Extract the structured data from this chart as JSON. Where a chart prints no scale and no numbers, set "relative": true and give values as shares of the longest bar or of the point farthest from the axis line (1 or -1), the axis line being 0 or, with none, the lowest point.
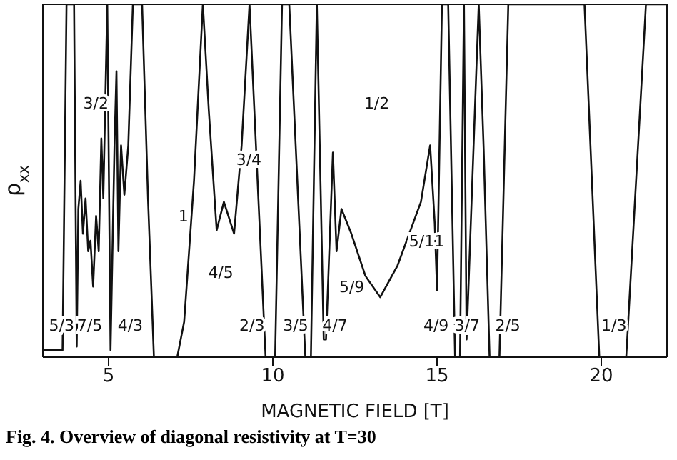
{
  "chart_data": {
    "type": "line",
    "relative": true,
    "xlabel": "MAGNETIC FIELD [T]",
    "ylabel": "ρ$_{xx}$",
    "xlim": [
      3,
      22
    ],
    "xticks": [
      5,
      10,
      15,
      20
    ],
    "marker": "none",
    "line_style": "solid",
    "series": [
      {
        "color": "#111111",
        "x": [
          3.04,
          3.6,
          3.72,
          3.95,
          4.03,
          4.08,
          4.15,
          4.22,
          4.3,
          4.38,
          4.45,
          4.53,
          4.62,
          4.7,
          4.78,
          4.84,
          4.96,
          5.06,
          5.18,
          5.24,
          5.3,
          5.38,
          5.48,
          5.6,
          5.74,
          6.02,
          6.2,
          6.38,
          7.09,
          7.3,
          7.6,
          7.87,
          8.05,
          8.29,
          8.51,
          8.82,
          9.05,
          9.29,
          9.78,
          10.07,
          10.28,
          10.5,
          10.99,
          11.16,
          11.34,
          11.55,
          11.62,
          11.83,
          11.94,
          12.09,
          12.39,
          12.82,
          13.27,
          13.8,
          14.51,
          14.79,
          14.93,
          15.0,
          15.15,
          15.34,
          15.55,
          15.7,
          15.82,
          15.9,
          16.27,
          16.42,
          16.6,
          16.9,
          17.17,
          19.49,
          19.94,
          20.76,
          21.36,
          22.0
        ],
        "values": [
          0.02,
          0.02,
          1,
          1,
          0.03,
          0.42,
          0.5,
          0.35,
          0.45,
          0.3,
          0.33,
          0.2,
          0.4,
          0.3,
          0.62,
          0.45,
          1,
          0.02,
          0.6,
          0.81,
          0.3,
          0.6,
          0.46,
          0.6,
          1,
          1,
          0.45,
          0,
          0,
          0.1,
          0.5,
          1,
          0.7,
          0.36,
          0.44,
          0.35,
          0.6,
          1,
          0,
          0,
          1,
          1,
          0,
          0,
          1,
          0.05,
          0.05,
          0.58,
          0.3,
          0.42,
          0.35,
          0.23,
          0.17,
          0.26,
          0.44,
          0.6,
          0.38,
          0.19,
          1,
          1,
          0,
          0,
          1,
          0.05,
          1,
          0.59,
          0,
          0,
          1,
          1,
          0,
          0,
          1,
          1
        ]
      }
    ],
    "annotations": [
      "5/3",
      "7/5",
      "4/3",
      "3/2",
      "1",
      "3/4",
      "4/5",
      "2/3",
      "3/5",
      "4/7",
      "5/9",
      "1/2",
      "5/11",
      "4/9",
      "3/7",
      "2/5",
      "1/3",
      "Fig. 4. Overview of diagonal resistivity at T=30"
    ]
  }
}
